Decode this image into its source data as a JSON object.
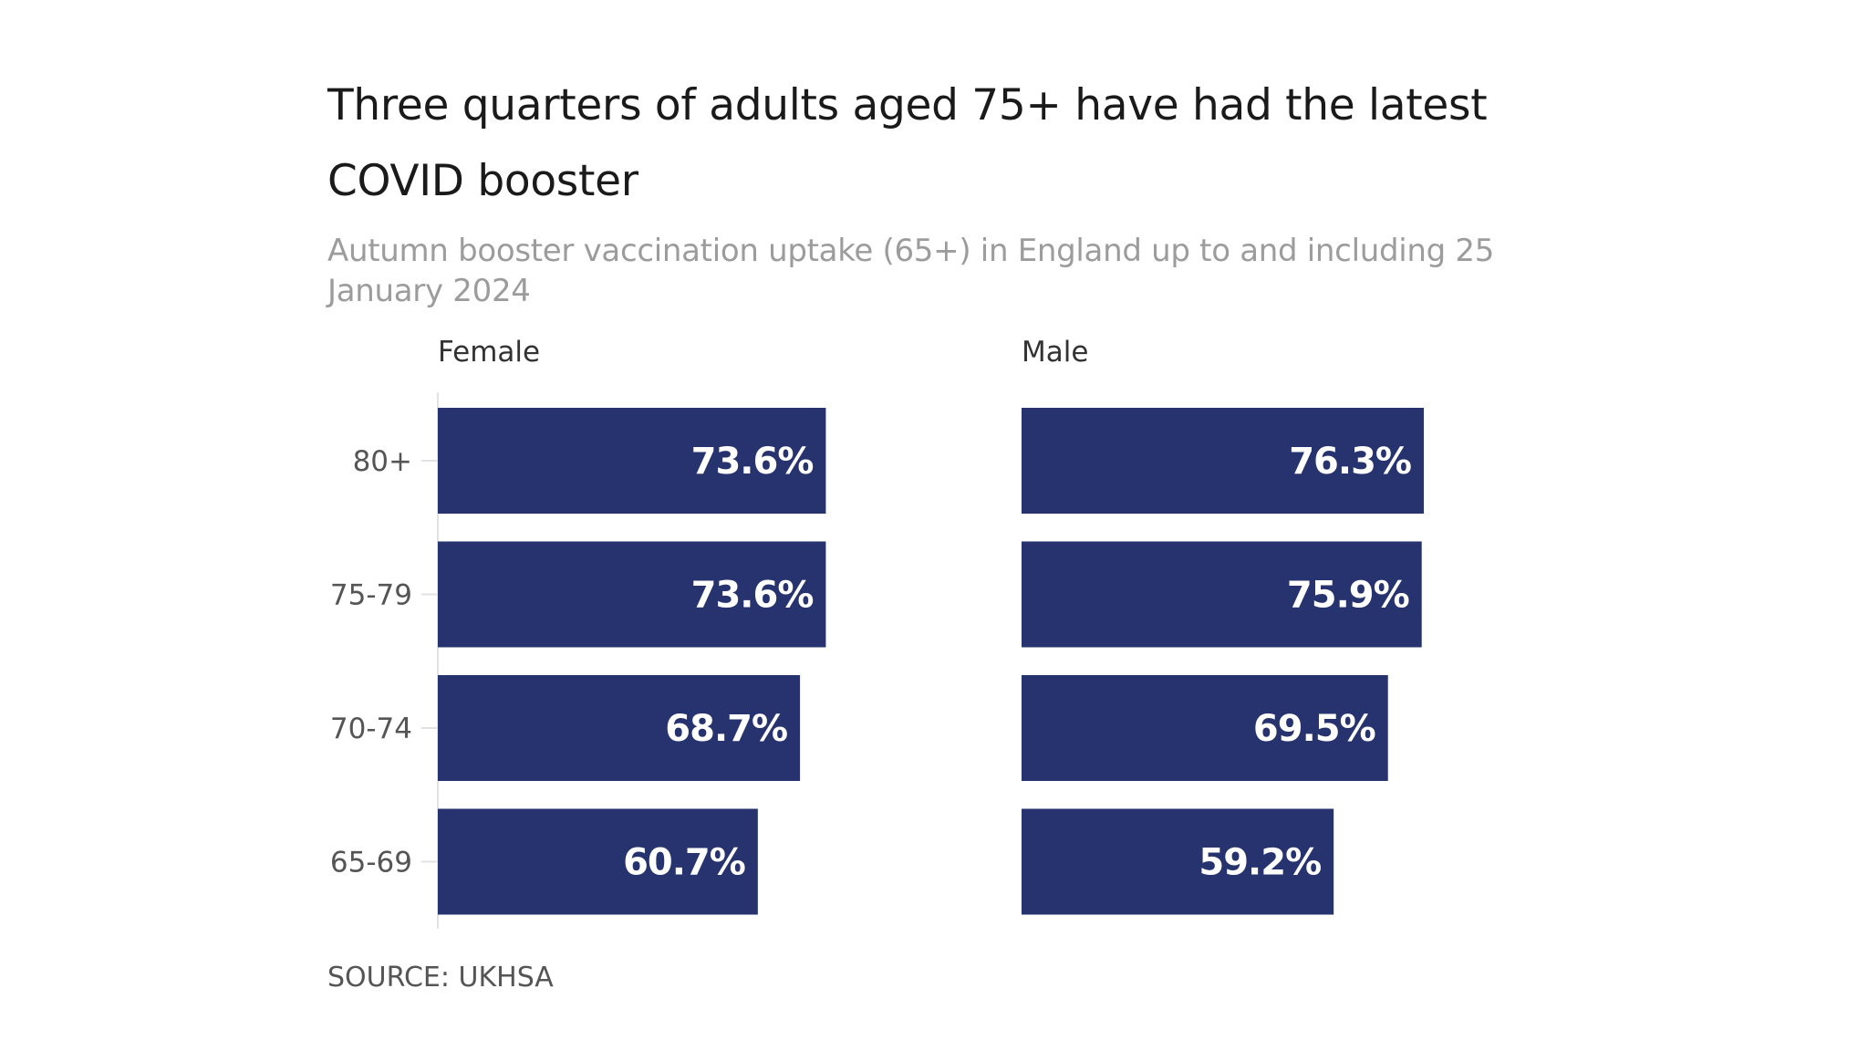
{
  "chart_data": {
    "type": "bar",
    "orientation": "horizontal",
    "title": "Three quarters of adults aged 75+ have had the latest COVID booster",
    "subtitle": "Autumn booster vaccination uptake (65+) in England up to and including 25 January 2024",
    "categories": [
      "80+",
      "75-79",
      "70-74",
      "65-69"
    ],
    "series": [
      {
        "name": "Female",
        "values": [
          73.6,
          73.6,
          68.7,
          60.7
        ],
        "labels": [
          "73.6%",
          "73.6%",
          "68.7%",
          "60.7%"
        ]
      },
      {
        "name": "Male",
        "values": [
          76.3,
          75.9,
          69.5,
          59.2
        ],
        "labels": [
          "76.3%",
          "75.9%",
          "69.5%",
          "59.2%"
        ]
      }
    ],
    "xlim": [
      0,
      100
    ],
    "grid": false,
    "legend": "none",
    "bar_color": "#26336e",
    "label_color": "#ffffff",
    "source": "SOURCE: UKHSA"
  }
}
